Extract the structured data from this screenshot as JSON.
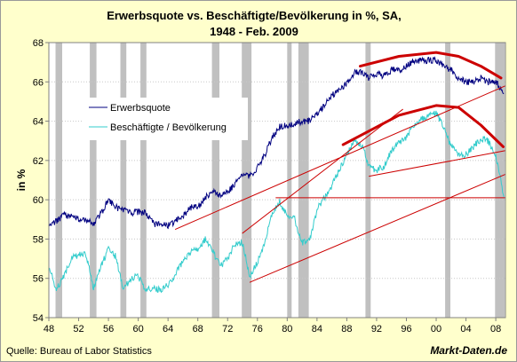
{
  "chart_data": {
    "type": "line",
    "title": "Erwerbsquote vs. Beschäftigte/Bevölkerung in %, SA,",
    "subtitle": "1948 - Feb. 2009",
    "ylabel": "in %",
    "xlabel": "",
    "xlim": [
      1948,
      2009.3
    ],
    "ylim": [
      54,
      68
    ],
    "y_ticks": [
      54,
      56,
      58,
      60,
      62,
      64,
      66,
      68
    ],
    "x_tick_labels": [
      "48",
      "52",
      "56",
      "60",
      "64",
      "68",
      "72",
      "76",
      "80",
      "84",
      "88",
      "92",
      "96",
      "00",
      "04",
      "08"
    ],
    "x_tick_years": [
      1948,
      1952,
      1956,
      1960,
      1964,
      1968,
      1972,
      1976,
      1980,
      1984,
      1988,
      1992,
      1996,
      2000,
      2004,
      2008
    ],
    "grid": true,
    "legend_position": "upper-left",
    "recessions": [
      [
        1948.9,
        1949.8
      ],
      [
        1953.5,
        1954.4
      ],
      [
        1957.6,
        1958.4
      ],
      [
        1960.3,
        1961.1
      ],
      [
        1969.9,
        1970.9
      ],
      [
        1973.9,
        1975.2
      ],
      [
        1980.0,
        1980.6
      ],
      [
        1981.5,
        1982.9
      ],
      [
        1990.5,
        1991.2
      ],
      [
        2001.2,
        2001.9
      ],
      [
        2007.9,
        2009.2
      ]
    ],
    "series": [
      {
        "name": "Erwerbsquote",
        "color": "#000080",
        "x": [
          1948,
          1949,
          1950,
          1951,
          1952,
          1953,
          1954,
          1955,
          1956,
          1957,
          1958,
          1959,
          1960,
          1961,
          1962,
          1963,
          1964,
          1965,
          1966,
          1967,
          1968,
          1969,
          1970,
          1971,
          1972,
          1973,
          1974,
          1975,
          1976,
          1977,
          1978,
          1979,
          1980,
          1981,
          1982,
          1983,
          1984,
          1985,
          1986,
          1987,
          1988,
          1989,
          1990,
          1991,
          1992,
          1993,
          1994,
          1995,
          1996,
          1997,
          1998,
          1999,
          2000,
          2001,
          2002,
          2003,
          2004,
          2005,
          2006,
          2007,
          2008,
          2009
        ],
        "values": [
          58.8,
          58.9,
          59.2,
          59.2,
          59.0,
          58.9,
          58.8,
          59.3,
          60.0,
          59.6,
          59.5,
          59.3,
          59.4,
          59.3,
          58.8,
          58.7,
          58.7,
          58.9,
          59.2,
          59.6,
          59.6,
          60.1,
          60.4,
          60.2,
          60.4,
          60.8,
          61.3,
          61.2,
          61.6,
          62.3,
          63.2,
          63.7,
          63.8,
          63.9,
          64.0,
          64.0,
          64.4,
          64.8,
          65.3,
          65.6,
          65.9,
          66.5,
          66.5,
          66.2,
          66.4,
          66.3,
          66.6,
          66.6,
          66.8,
          67.1,
          67.1,
          67.1,
          67.1,
          66.8,
          66.6,
          66.2,
          66.0,
          66.0,
          66.2,
          66.0,
          66.0,
          65.5
        ]
      },
      {
        "name": "Beschäftigte / Bevölkerung",
        "color": "#33cccc",
        "x": [
          1948,
          1949,
          1950,
          1951,
          1952,
          1953,
          1954,
          1955,
          1956,
          1957,
          1958,
          1959,
          1960,
          1961,
          1962,
          1963,
          1964,
          1965,
          1966,
          1967,
          1968,
          1969,
          1970,
          1971,
          1972,
          1973,
          1974,
          1975,
          1976,
          1977,
          1978,
          1979,
          1980,
          1981,
          1982,
          1983,
          1984,
          1985,
          1986,
          1987,
          1988,
          1989,
          1990,
          1991,
          1992,
          1993,
          1994,
          1995,
          1996,
          1997,
          1998,
          1999,
          2000,
          2001,
          2002,
          2003,
          2004,
          2005,
          2006,
          2007,
          2008,
          2009
        ],
        "values": [
          56.6,
          55.4,
          56.1,
          57.0,
          57.2,
          57.2,
          55.5,
          56.6,
          57.5,
          57.1,
          55.4,
          56.0,
          56.1,
          55.4,
          55.5,
          55.4,
          55.7,
          56.2,
          56.9,
          57.3,
          57.5,
          58.0,
          57.4,
          56.6,
          57.0,
          57.8,
          57.8,
          56.1,
          56.8,
          57.9,
          59.3,
          59.9,
          59.2,
          59.0,
          57.8,
          57.9,
          59.5,
          60.1,
          60.7,
          61.5,
          62.3,
          63.0,
          62.8,
          61.7,
          61.5,
          61.7,
          62.5,
          62.9,
          63.2,
          63.8,
          64.1,
          64.3,
          64.4,
          63.7,
          62.7,
          62.3,
          62.3,
          62.7,
          63.1,
          63.0,
          62.2,
          60.3
        ]
      }
    ],
    "trendlines": [
      {
        "color": "#cc0000",
        "width": 1,
        "points": [
          [
            1965,
            58.5
          ],
          [
            2009.3,
            65.8
          ]
        ]
      },
      {
        "color": "#cc0000",
        "width": 1,
        "points": [
          [
            1975,
            55.8
          ],
          [
            2009.3,
            61.3
          ]
        ]
      },
      {
        "color": "#cc0000",
        "width": 1,
        "points": [
          [
            1974,
            58.3
          ],
          [
            1995.5,
            64.6
          ]
        ]
      },
      {
        "color": "#cc0000",
        "width": 1,
        "points": [
          [
            1991,
            61.2
          ],
          [
            2009.3,
            62.5
          ]
        ]
      },
      {
        "color": "#cc0000",
        "width": 1,
        "points": [
          [
            1978.5,
            60.1
          ],
          [
            2009.3,
            60.1
          ]
        ]
      },
      {
        "color": "#cc0000",
        "width": 3,
        "points": [
          [
            1987.5,
            62.8
          ],
          [
            1995,
            64.3
          ],
          [
            2000,
            64.8
          ],
          [
            2003,
            64.7
          ],
          [
            2006,
            63.8
          ],
          [
            2009,
            62.7
          ]
        ]
      },
      {
        "color": "#cc0000",
        "width": 3,
        "points": [
          [
            1989.8,
            66.8
          ],
          [
            1995,
            67.3
          ],
          [
            2000,
            67.5
          ],
          [
            2003,
            67.3
          ],
          [
            2006,
            66.8
          ],
          [
            2008.7,
            66.2
          ]
        ]
      }
    ]
  },
  "footer": {
    "source": "Quelle: Bureau of Labor Statistics",
    "brand": "Markt-Daten.de"
  }
}
